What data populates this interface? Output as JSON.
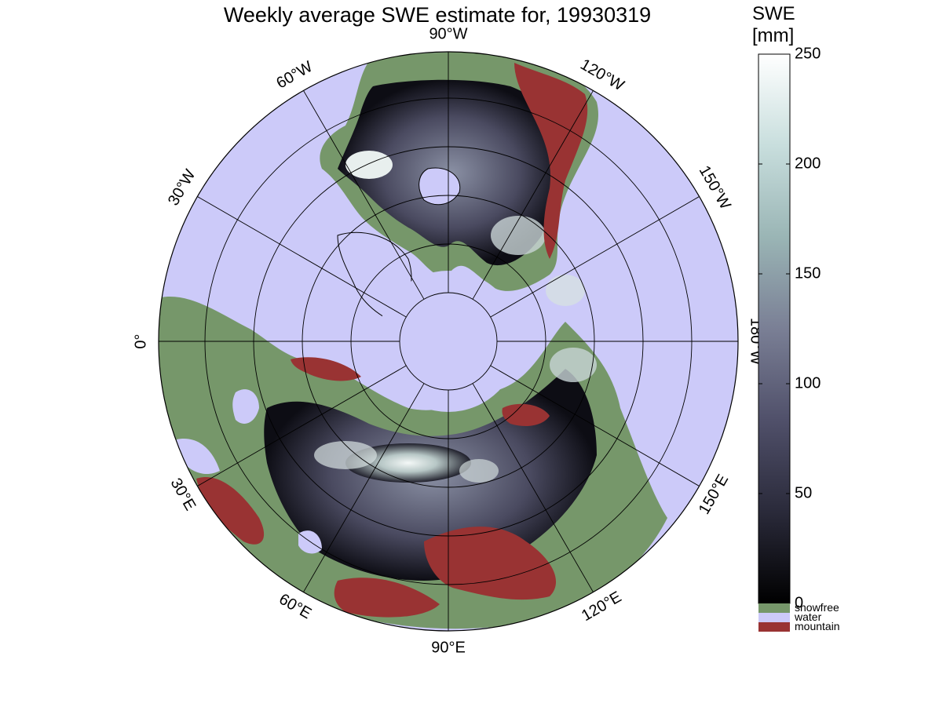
{
  "title": "Weekly average SWE estimate for, 19930319",
  "colorbar": {
    "title_line1": "SWE",
    "title_line2": "[mm]",
    "ticks": [
      0,
      50,
      100,
      150,
      200,
      250
    ],
    "range": [
      0,
      250
    ],
    "gradient_stops": [
      "#000000",
      "#2a2a3a",
      "#50506a",
      "#7a7f95",
      "#9ab5b5",
      "#c8dedd",
      "#ffffff"
    ]
  },
  "legend": [
    {
      "label": "snowfree",
      "color": "#76976a"
    },
    {
      "label": "water",
      "color": "#cccaf9"
    },
    {
      "label": "mountain",
      "color": "#993333"
    }
  ],
  "longitude_labels": [
    {
      "text": "90°W",
      "lon": -90
    },
    {
      "text": "120°W",
      "lon": -120
    },
    {
      "text": "150°W",
      "lon": -150
    },
    {
      "text": "180°W",
      "lon": 180
    },
    {
      "text": "150°E",
      "lon": 150
    },
    {
      "text": "120°E",
      "lon": 120
    },
    {
      "text": "90°E",
      "lon": 90
    },
    {
      "text": "60°E",
      "lon": 60
    },
    {
      "text": "30°E",
      "lon": 30
    },
    {
      "text": "0°",
      "lon": 0
    },
    {
      "text": "30°W",
      "lon": -30
    },
    {
      "text": "60°W",
      "lon": -60
    }
  ],
  "colors": {
    "water": "#cccaf9",
    "snowfree": "#76976a",
    "mountain": "#993333",
    "grid": "#000000"
  }
}
